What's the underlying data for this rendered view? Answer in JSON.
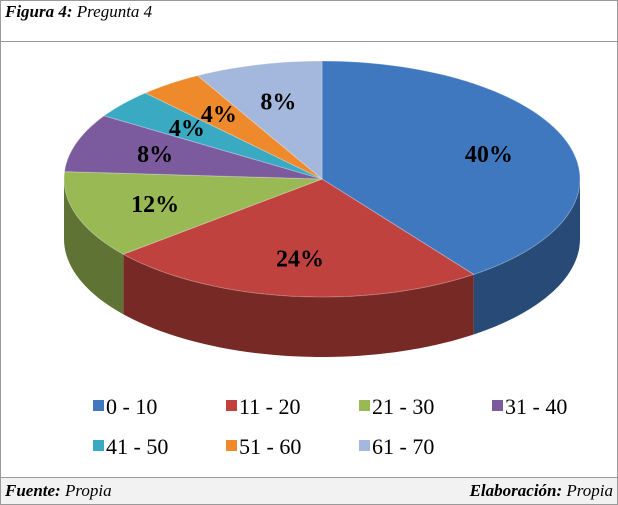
{
  "figure": {
    "label": "Figura 4:",
    "caption": "Pregunta 4"
  },
  "footer": {
    "source_label": "Fuente:",
    "source": "Propia",
    "made_label": "Elaboración:",
    "made": "Propia"
  },
  "chart_data": {
    "type": "pie",
    "categories": [
      "0 - 10",
      "11 - 20",
      "21 - 30",
      "31 - 40",
      "41 - 50",
      "51 - 60",
      "61 - 70"
    ],
    "values": [
      40,
      24,
      12,
      8,
      4,
      4,
      8
    ],
    "value_labels": [
      "40%",
      "24%",
      "12%",
      "8%",
      "4%",
      "4%",
      "8%"
    ],
    "colors": [
      "#3f78bf",
      "#c0423e",
      "#98b954",
      "#7b5a9e",
      "#3aa9c2",
      "#ef8a2c",
      "#a3b8dc"
    ],
    "legend": "bottom"
  }
}
